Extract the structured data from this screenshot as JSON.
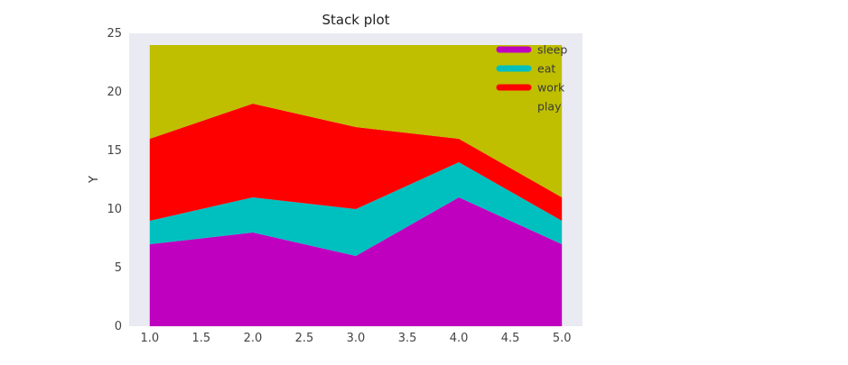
{
  "chart_data": {
    "type": "area",
    "stacked": true,
    "title": "Stack plot",
    "xlabel": "",
    "ylabel": "Y",
    "x": [
      1,
      2,
      3,
      4,
      5
    ],
    "xlim": [
      0.8,
      5.2
    ],
    "ylim": [
      0,
      25
    ],
    "x_ticks": [
      "1.0",
      "1.5",
      "2.0",
      "2.5",
      "3.0",
      "3.5",
      "4.0",
      "4.5",
      "5.0"
    ],
    "y_ticks": [
      "0",
      "5",
      "10",
      "15",
      "20",
      "25"
    ],
    "grid": false,
    "legend_position": "top-right",
    "series": [
      {
        "name": "sleep",
        "color": "#bf00bf",
        "values": [
          7,
          8,
          6,
          11,
          7
        ]
      },
      {
        "name": "eat",
        "color": "#00bfbf",
        "values": [
          2,
          3,
          4,
          3,
          2
        ]
      },
      {
        "name": "work",
        "color": "#ff0000",
        "values": [
          7,
          8,
          7,
          2,
          2
        ]
      },
      {
        "name": "play",
        "color": "#bfbf00",
        "values": [
          8,
          5,
          7,
          8,
          13
        ]
      }
    ]
  }
}
